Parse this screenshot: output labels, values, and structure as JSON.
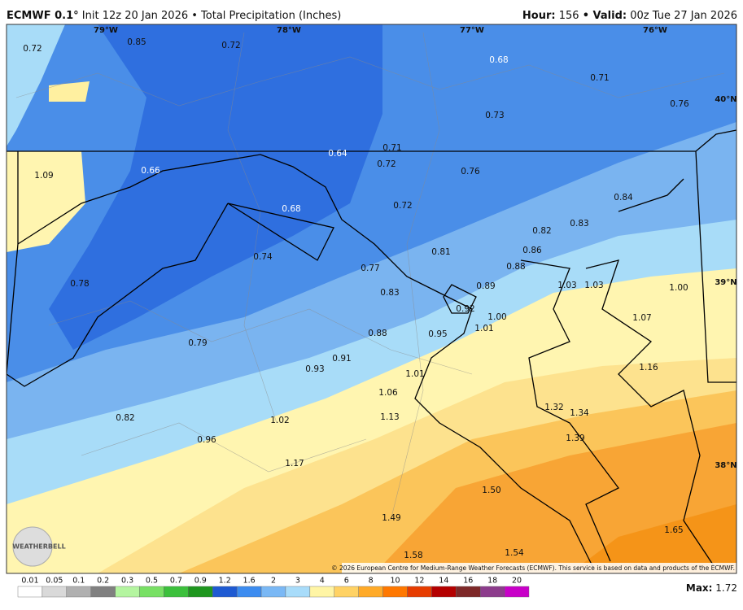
{
  "header": {
    "model": "ECMWF 0.1°",
    "description": "Init 12z 20 Jan 2026 • Total Precipitation (Inches)",
    "hour_label": "Hour:",
    "hour": "156",
    "valid_label": "• Valid:",
    "valid": "00z Tue 27 Jan 2026"
  },
  "map": {
    "longitudes": [
      "79°W",
      "78°W",
      "77°W",
      "76°W"
    ],
    "latitudes": [
      "40°N",
      "39°N",
      "38°N"
    ],
    "values": [
      "0.72",
      "0.85",
      "0.72",
      "0.68",
      "0.71",
      "0.76",
      "0.73",
      "0.64",
      "0.71",
      "0.72",
      "0.76",
      "1.09",
      "0.66",
      "0.84",
      "0.72",
      "0.68",
      "0.83",
      "0.82",
      "0.86",
      "0.81",
      "0.74",
      "0.88",
      "0.77",
      "0.78",
      "0.89",
      "1.03",
      "1.03",
      "1.00",
      "0.83",
      "0.92",
      "1.00",
      "1.07",
      "1.01",
      "0.88",
      "0.95",
      "0.79",
      "0.91",
      "1.16",
      "0.93",
      "1.01",
      "1.06",
      "1.32",
      "1.34",
      "0.82",
      "1.13",
      "1.02",
      "1.39",
      "0.96",
      "1.17",
      "1.50",
      "1.49",
      "1.65",
      "1.58",
      "1.54"
    ],
    "copyright": "© 2026 European Centre for Medium-Range Weather Forecasts (ECMWF). This service is based on data and products of the ECMWF.",
    "logo": "WEATHERBELL"
  },
  "colorbar": {
    "labels": [
      "0.01",
      "0.05",
      "0.1",
      "0.2",
      "0.3",
      "0.5",
      "0.7",
      "0.9",
      "1.2",
      "1.6",
      "2",
      "3",
      "4",
      "6",
      "8",
      "10",
      "12",
      "14",
      "16",
      "18",
      "20"
    ],
    "colors": [
      "#ffffff",
      "#d9d9d9",
      "#b0b0b0",
      "#808080",
      "#b4f5a0",
      "#78e064",
      "#3cc03c",
      "#1e961e",
      "#1e5ad2",
      "#3c8cf0",
      "#7ab8f5",
      "#a8dcfa",
      "#fff5a5",
      "#ffd264",
      "#ffaa28",
      "#ff7800",
      "#e63c00",
      "#b40000",
      "#7d2828",
      "#8c3c8c",
      "#c800c8"
    ]
  },
  "footer": {
    "max_label": "Max:",
    "max": "1.72"
  }
}
